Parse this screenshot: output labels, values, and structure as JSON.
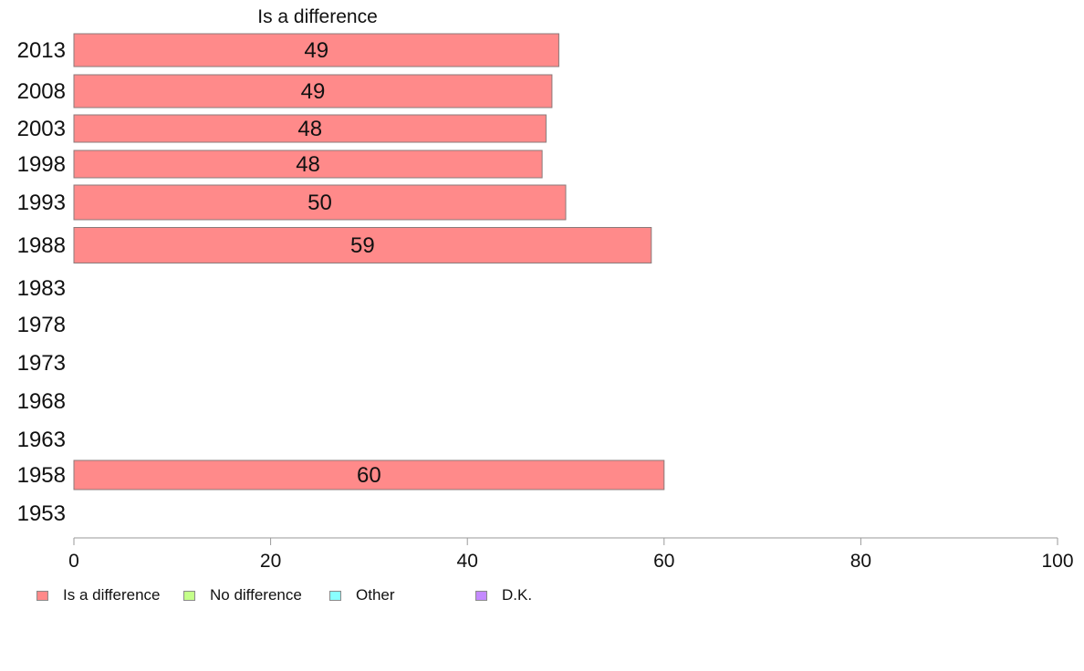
{
  "chart_data": {
    "type": "bar",
    "orientation": "horizontal",
    "title": "Is a difference",
    "categories": [
      "2013",
      "2008",
      "2003",
      "1998",
      "1993",
      "1988",
      "1983",
      "1978",
      "1973",
      "1968",
      "1963",
      "1958",
      "1953"
    ],
    "series": [
      {
        "name": "Is a difference",
        "color": "#ff8a8a",
        "values": [
          49.3,
          48.6,
          48.0,
          47.6,
          50.0,
          58.7,
          null,
          null,
          null,
          null,
          null,
          60.0,
          null
        ],
        "labels": [
          "49",
          "49",
          "48",
          "48",
          "50",
          "59",
          "",
          "",
          "",
          "",
          "",
          "60",
          ""
        ]
      }
    ],
    "xlim": [
      0,
      100
    ],
    "x_ticks": [
      "0",
      "20",
      "40",
      "60",
      "80",
      "100"
    ],
    "grid": false,
    "legend_position": "bottom-left",
    "legend": [
      {
        "label": "Is a difference",
        "color": "#ff8a8a"
      },
      {
        "label": "No difference",
        "color": "#c4ff8a"
      },
      {
        "label": "Other",
        "color": "#8affff"
      },
      {
        "label": "D.K.",
        "color": "#c48aff"
      }
    ]
  }
}
